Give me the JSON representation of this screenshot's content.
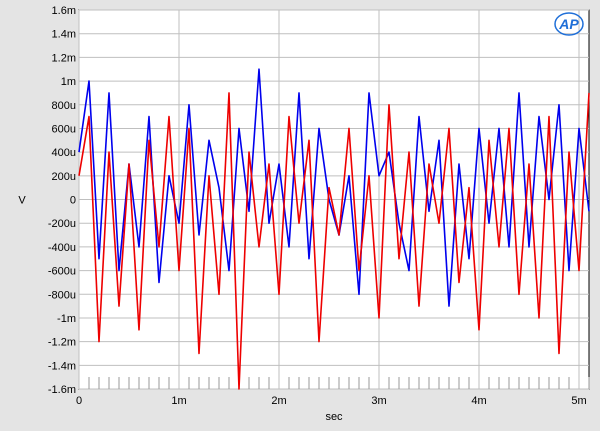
{
  "logo": {
    "text": "AP",
    "color": "#1f6fd8"
  },
  "chart_data": {
    "type": "line",
    "xlabel": "sec",
    "ylabel": "V",
    "xlim": [
      0,
      0.0051
    ],
    "ylim": [
      -0.0016,
      0.0016
    ],
    "grid": true,
    "x_ticks": [
      0,
      0.001,
      0.002,
      0.003,
      0.004,
      0.005
    ],
    "x_tick_labels": [
      "0",
      "1m",
      "2m",
      "3m",
      "4m",
      "5m"
    ],
    "y_ticks": [
      -0.0016,
      -0.0014,
      -0.0012,
      -0.001,
      -0.0008,
      -0.0006,
      -0.0004,
      -0.0002,
      0,
      0.0002,
      0.0004,
      0.0006,
      0.0008,
      0.001,
      0.0012,
      0.0014,
      0.0016
    ],
    "y_tick_labels": [
      "-1.6m",
      "-1.4m",
      "-1.2m",
      "-1m",
      "-800u",
      "-600u",
      "-400u",
      "-200u",
      "0",
      "200u",
      "400u",
      "600u",
      "800u",
      "1m",
      "1.2m",
      "1.4m",
      "1.6m"
    ],
    "series": [
      {
        "color": "#0000ee",
        "x": [
          0,
          0.0001,
          0.0002,
          0.0003,
          0.0004,
          0.0005,
          0.0006,
          0.0007,
          0.0008,
          0.0009,
          0.001,
          0.0011,
          0.0012,
          0.0013,
          0.0014,
          0.0015,
          0.0016,
          0.0017,
          0.0018,
          0.0019,
          0.002,
          0.0021,
          0.0022,
          0.0023,
          0.0024,
          0.0025,
          0.0026,
          0.0027,
          0.0028,
          0.0029,
          0.003,
          0.0031,
          0.0032,
          0.0033,
          0.0034,
          0.0035,
          0.0036,
          0.0037,
          0.0038,
          0.0039,
          0.004,
          0.0041,
          0.0042,
          0.0043,
          0.0044,
          0.0045,
          0.0046,
          0.0047,
          0.0048,
          0.0049,
          0.005,
          0.0051
        ],
        "values": [
          0.0004,
          0.001,
          -0.0005,
          0.0009,
          -0.0006,
          0.0003,
          -0.0004,
          0.0007,
          -0.0007,
          0.0002,
          -0.0002,
          0.0008,
          -0.0003,
          0.0005,
          0.0001,
          -0.0006,
          0.0006,
          -0.0001,
          0.0011,
          -0.0002,
          0.0003,
          -0.0004,
          0.0009,
          -0.0005,
          0.0006,
          0.0,
          -0.0003,
          0.0002,
          -0.0008,
          0.0009,
          0.0002,
          0.0004,
          -0.0002,
          -0.0006,
          0.0007,
          -0.0001,
          0.0005,
          -0.0009,
          0.0003,
          -0.0005,
          0.0006,
          -0.0002,
          0.0006,
          -0.0004,
          0.0009,
          -0.0004,
          0.0007,
          0.0,
          0.0008,
          -0.0006,
          0.0006,
          -0.0001
        ]
      },
      {
        "color": "#ee0000",
        "x": [
          0,
          0.0001,
          0.0002,
          0.0003,
          0.0004,
          0.0005,
          0.0006,
          0.0007,
          0.0008,
          0.0009,
          0.001,
          0.0011,
          0.0012,
          0.0013,
          0.0014,
          0.0015,
          0.0016,
          0.0017,
          0.0018,
          0.0019,
          0.002,
          0.0021,
          0.0022,
          0.0023,
          0.0024,
          0.0025,
          0.0026,
          0.0027,
          0.0028,
          0.0029,
          0.003,
          0.0031,
          0.0032,
          0.0033,
          0.0034,
          0.0035,
          0.0036,
          0.0037,
          0.0038,
          0.0039,
          0.004,
          0.0041,
          0.0042,
          0.0043,
          0.0044,
          0.0045,
          0.0046,
          0.0047,
          0.0048,
          0.0049,
          0.005,
          0.0051
        ],
        "values": [
          0.0002,
          0.0007,
          -0.0012,
          0.0004,
          -0.0009,
          0.0003,
          -0.0011,
          0.0005,
          -0.0004,
          0.0007,
          -0.0006,
          0.0006,
          -0.0013,
          0.0002,
          -0.0008,
          0.0009,
          -0.0016,
          0.0004,
          -0.0004,
          0.0003,
          -0.0008,
          0.0007,
          -0.0002,
          0.0005,
          -0.0012,
          0.0001,
          -0.0003,
          0.0006,
          -0.0006,
          0.0002,
          -0.001,
          0.0008,
          -0.0005,
          0.0004,
          -0.0009,
          0.0003,
          -0.0002,
          0.0006,
          -0.0007,
          0.0001,
          -0.0011,
          0.0005,
          -0.0004,
          0.0006,
          -0.0008,
          0.0003,
          -0.001,
          0.0007,
          -0.0013,
          0.0004,
          -0.0006,
          0.0009
        ]
      }
    ]
  }
}
